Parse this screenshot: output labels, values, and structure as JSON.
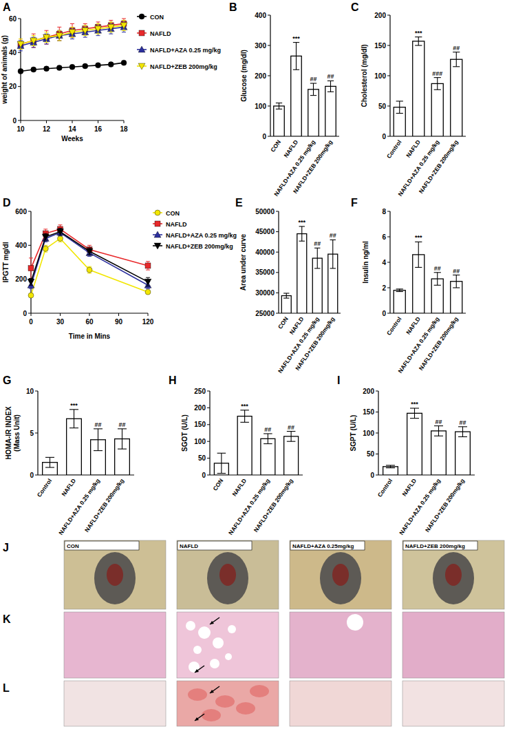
{
  "chart_data": [
    {
      "panel": "A",
      "type": "line",
      "x_label": "Weeks",
      "y_label": "weight of animals (g)",
      "x": [
        10,
        11,
        12,
        13,
        14,
        15,
        16,
        17,
        18
      ],
      "xlim": [
        10,
        18
      ],
      "xticks": [
        10,
        12,
        14,
        16,
        18
      ],
      "ylim": [
        0,
        60
      ],
      "yticks": [
        0,
        20,
        40,
        60
      ],
      "legend": "outside-right",
      "series": [
        {
          "name": "CON",
          "color": "#000000",
          "marker": "circle",
          "values": [
            29,
            30,
            30.5,
            31,
            31.5,
            32,
            32.5,
            33,
            34
          ],
          "errors": [
            1,
            1,
            1,
            1,
            1,
            1,
            1,
            1,
            1
          ]
        },
        {
          "name": "NAFLD",
          "color": "#e8292b",
          "marker": "square",
          "values": [
            45,
            47,
            49,
            51,
            53,
            54,
            55,
            56,
            57
          ],
          "errors": [
            3,
            4,
            4,
            4,
            4,
            3,
            3,
            3,
            3
          ]
        },
        {
          "name": "NAFLD+AZA 0.25 mg/kg",
          "color": "#2b2f9e",
          "marker": "triangle",
          "values": [
            44,
            46,
            48,
            50,
            51,
            52,
            53,
            54,
            55
          ],
          "errors": [
            3,
            3,
            3,
            3,
            3,
            3,
            3,
            3,
            3
          ]
        },
        {
          "name": "NAFLD+ZEB 200mg/kg",
          "color": "#f2e600",
          "marker": "triangle-down",
          "values": [
            45,
            47,
            49,
            50,
            52,
            53,
            54,
            55,
            56
          ],
          "errors": [
            3,
            3,
            3,
            3,
            3,
            3,
            3,
            3,
            3
          ]
        }
      ]
    },
    {
      "panel": "B",
      "type": "bar",
      "y_label": "Glucose (mg/dl)",
      "color": "#ffffff",
      "categories": [
        "CON",
        "NAFLD",
        "NAFLD+AZA 0.25 mg/kg",
        "NAFLD+ZEB 200mg/kg"
      ],
      "values": [
        100,
        265,
        155,
        165
      ],
      "errors": [
        10,
        45,
        20,
        18
      ],
      "annotations": [
        null,
        "***",
        "##",
        "##"
      ],
      "ylim": [
        0,
        400
      ],
      "yticks": [
        0,
        100,
        200,
        300,
        400
      ]
    },
    {
      "panel": "C",
      "type": "bar",
      "y_label": "Cholesterol (mg/dl)",
      "color": "#ffffff",
      "categories": [
        "Control",
        "NAFLD",
        "NAFLD+AZA 0.25 mg/kg",
        "NAFLD+ZEB 200mg/kg"
      ],
      "values": [
        48,
        157,
        87,
        127
      ],
      "errors": [
        10,
        7,
        10,
        12
      ],
      "annotations": [
        null,
        "***",
        "###",
        "##"
      ],
      "ylim": [
        0,
        200
      ],
      "yticks": [
        0,
        50,
        100,
        150,
        200
      ]
    },
    {
      "panel": "D",
      "type": "line",
      "x_label": "Time in Mins",
      "y_label": "IPGTT mg/dl",
      "x": [
        0,
        15,
        30,
        60,
        120
      ],
      "xlim": [
        0,
        120
      ],
      "xticks": [
        0,
        30,
        60,
        90,
        120
      ],
      "ylim": [
        0,
        600
      ],
      "yticks": [
        0,
        200,
        400,
        600
      ],
      "legend": "outside-right",
      "series": [
        {
          "name": "CON",
          "color": "#f2e600",
          "marker": "circle",
          "values": [
            105,
            380,
            440,
            255,
            125
          ],
          "errors": [
            10,
            20,
            20,
            20,
            10
          ]
        },
        {
          "name": "NAFLD",
          "color": "#e8292b",
          "marker": "square",
          "values": [
            265,
            470,
            495,
            375,
            280
          ],
          "errors": [
            60,
            25,
            25,
            25,
            25
          ]
        },
        {
          "name": "NAFLD+AZA 0.25 mg/kg",
          "color": "#2b2f9e",
          "marker": "triangle",
          "values": [
            165,
            440,
            475,
            355,
            165
          ],
          "errors": [
            20,
            20,
            20,
            20,
            20
          ]
        },
        {
          "name": "NAFLD+ZEB 200mg/kg",
          "color": "#000000",
          "marker": "triangle-down",
          "values": [
            185,
            450,
            480,
            365,
            185
          ],
          "errors": [
            20,
            20,
            20,
            20,
            25
          ]
        }
      ]
    },
    {
      "panel": "E",
      "type": "bar",
      "y_label": "Area under curve",
      "color": "#ffffff",
      "categories": [
        "CON",
        "NAFLD",
        "NAFLD+AZA 0.25 mg/kg",
        "NAFLD+ZEB 200mg/kg"
      ],
      "values": [
        29300,
        44500,
        38500,
        39500
      ],
      "errors": [
        600,
        1800,
        2500,
        3500
      ],
      "annotations": [
        null,
        "***",
        "##",
        "##"
      ],
      "ylim": [
        25000,
        50000
      ],
      "yticks": [
        25000,
        30000,
        35000,
        40000,
        45000,
        50000
      ]
    },
    {
      "panel": "F",
      "type": "bar",
      "y_label": "Insulin ng/ml",
      "color": "#ffffff",
      "categories": [
        "Control",
        "NAFLD",
        "NAFLD+AZA 0.25 mg/kg",
        "NAFLD+ZEB 200mg/kg"
      ],
      "values": [
        1.8,
        4.6,
        2.7,
        2.5
      ],
      "errors": [
        0.1,
        1.0,
        0.5,
        0.5
      ],
      "annotations": [
        null,
        "***",
        "##",
        "##"
      ],
      "ylim": [
        0,
        8
      ],
      "yticks": [
        0,
        2,
        4,
        6,
        8
      ]
    },
    {
      "panel": "G",
      "type": "bar",
      "y_label": [
        "HOMA-IR INDEX",
        "(Mass Unit)"
      ],
      "color": "#ffffff",
      "categories": [
        "Control",
        "NAFLD",
        "NAFLD+AZA 0.25 mg/kg",
        "NAFLD+ZEB 200mg/kg"
      ],
      "values": [
        1.5,
        6.7,
        4.2,
        4.3
      ],
      "errors": [
        0.6,
        1.1,
        1.3,
        1.2
      ],
      "annotations": [
        null,
        "***",
        "##",
        "##"
      ],
      "ylim": [
        0,
        10
      ],
      "yticks": [
        0,
        5,
        10
      ]
    },
    {
      "panel": "H",
      "type": "bar",
      "y_label": "SGOT (U/L)",
      "color": "#ffffff",
      "categories": [
        "CON",
        "NAFLD",
        "NAFLD+AZA 0.25 mg/kg",
        "NAFLD+ZEB 200mg/kg"
      ],
      "values": [
        35,
        175,
        108,
        115
      ],
      "errors": [
        30,
        18,
        15,
        15
      ],
      "annotations": [
        null,
        "***",
        "##",
        "##"
      ],
      "ylim": [
        0,
        250
      ],
      "yticks": [
        0,
        50,
        100,
        150,
        200,
        250
      ]
    },
    {
      "panel": "I",
      "type": "bar",
      "y_label": "SGPT (U/L)",
      "color": "#ffffff",
      "categories": [
        "Control",
        "NAFLD",
        "NAFLD+AZA 0.25 mg/kg",
        "NAFLD+ZEB 200mg/kg"
      ],
      "values": [
        20,
        147,
        105,
        103
      ],
      "errors": [
        3,
        12,
        12,
        12
      ],
      "annotations": [
        null,
        "***",
        "##",
        "##"
      ],
      "ylim": [
        0,
        200
      ],
      "yticks": [
        0,
        50,
        100,
        150,
        200
      ]
    }
  ],
  "image_panels": [
    {
      "label": "J",
      "titles": [
        "CON",
        "NAFLD",
        "NAFLD+AZA 0.25mg/kg",
        "NAFLD+ZEB 200mg/kg"
      ]
    },
    {
      "label": "K"
    },
    {
      "label": "L"
    }
  ]
}
